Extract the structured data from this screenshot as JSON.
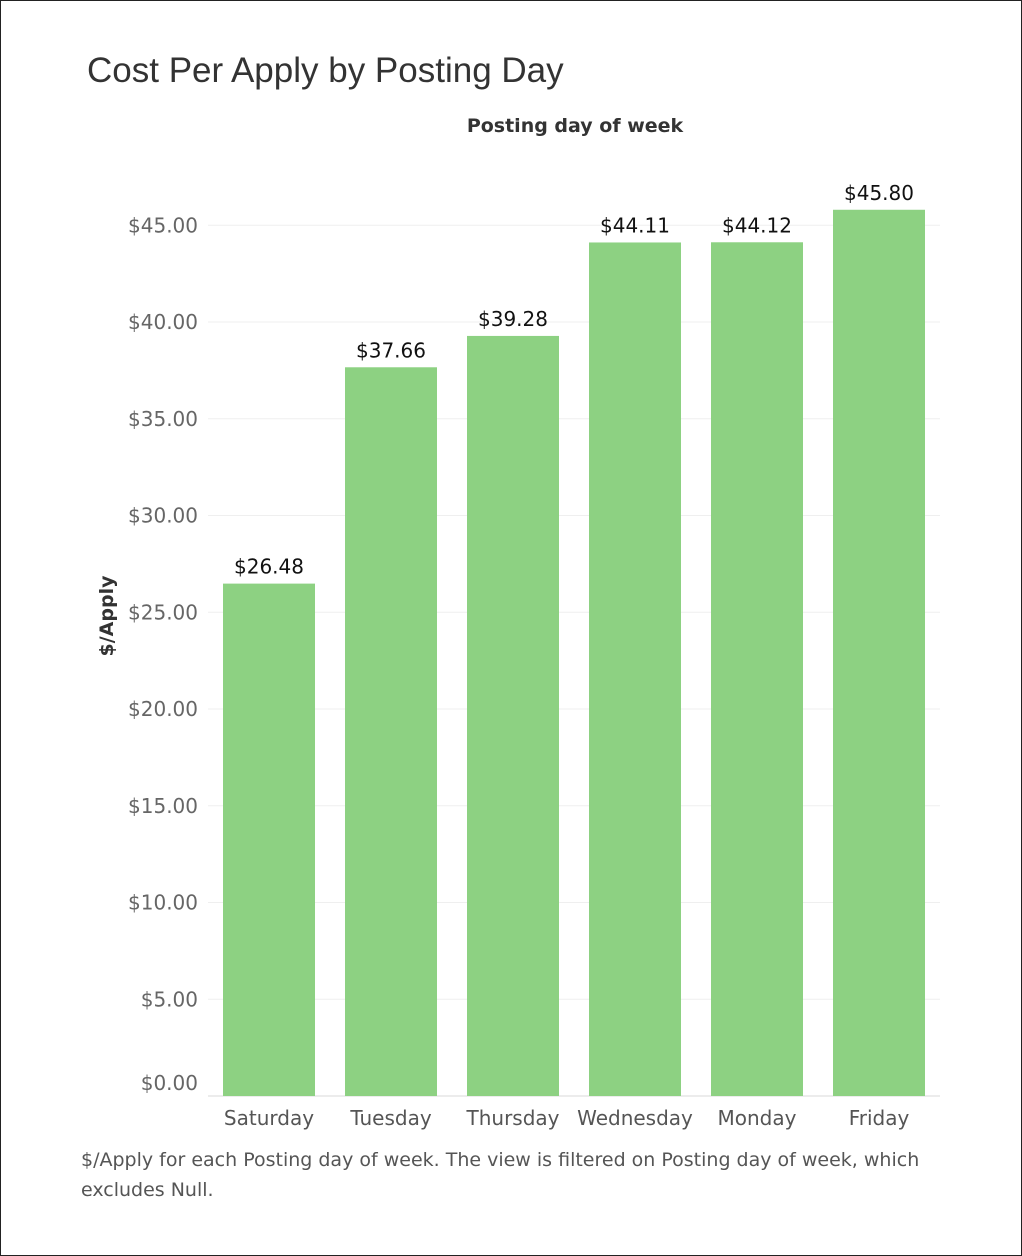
{
  "chart_data": {
    "type": "bar",
    "title": "Cost Per Apply by Posting Day",
    "column_header": "Posting day of week",
    "ylabel": "$/Apply",
    "categories": [
      "Saturday",
      "Tuesday",
      "Thursday",
      "Wednesday",
      "Monday",
      "Friday"
    ],
    "values": [
      26.48,
      37.66,
      39.28,
      44.11,
      44.12,
      45.8
    ],
    "data_labels": [
      "$26.48",
      "$37.66",
      "$39.28",
      "$44.11",
      "$44.12",
      "$45.80"
    ],
    "y_ticks": [
      0,
      5,
      10,
      15,
      20,
      25,
      30,
      35,
      40,
      45
    ],
    "y_tick_labels": [
      "$0.00",
      "$5.00",
      "$10.00",
      "$15.00",
      "$20.00",
      "$25.00",
      "$30.00",
      "$35.00",
      "$40.00",
      "$45.00"
    ],
    "ylim": [
      0,
      45.8
    ],
    "grid": true,
    "bar_color": "#8dd182",
    "caption": "$/Apply for each Posting day of week. The view is filtered on Posting day of week, which excludes Null."
  }
}
